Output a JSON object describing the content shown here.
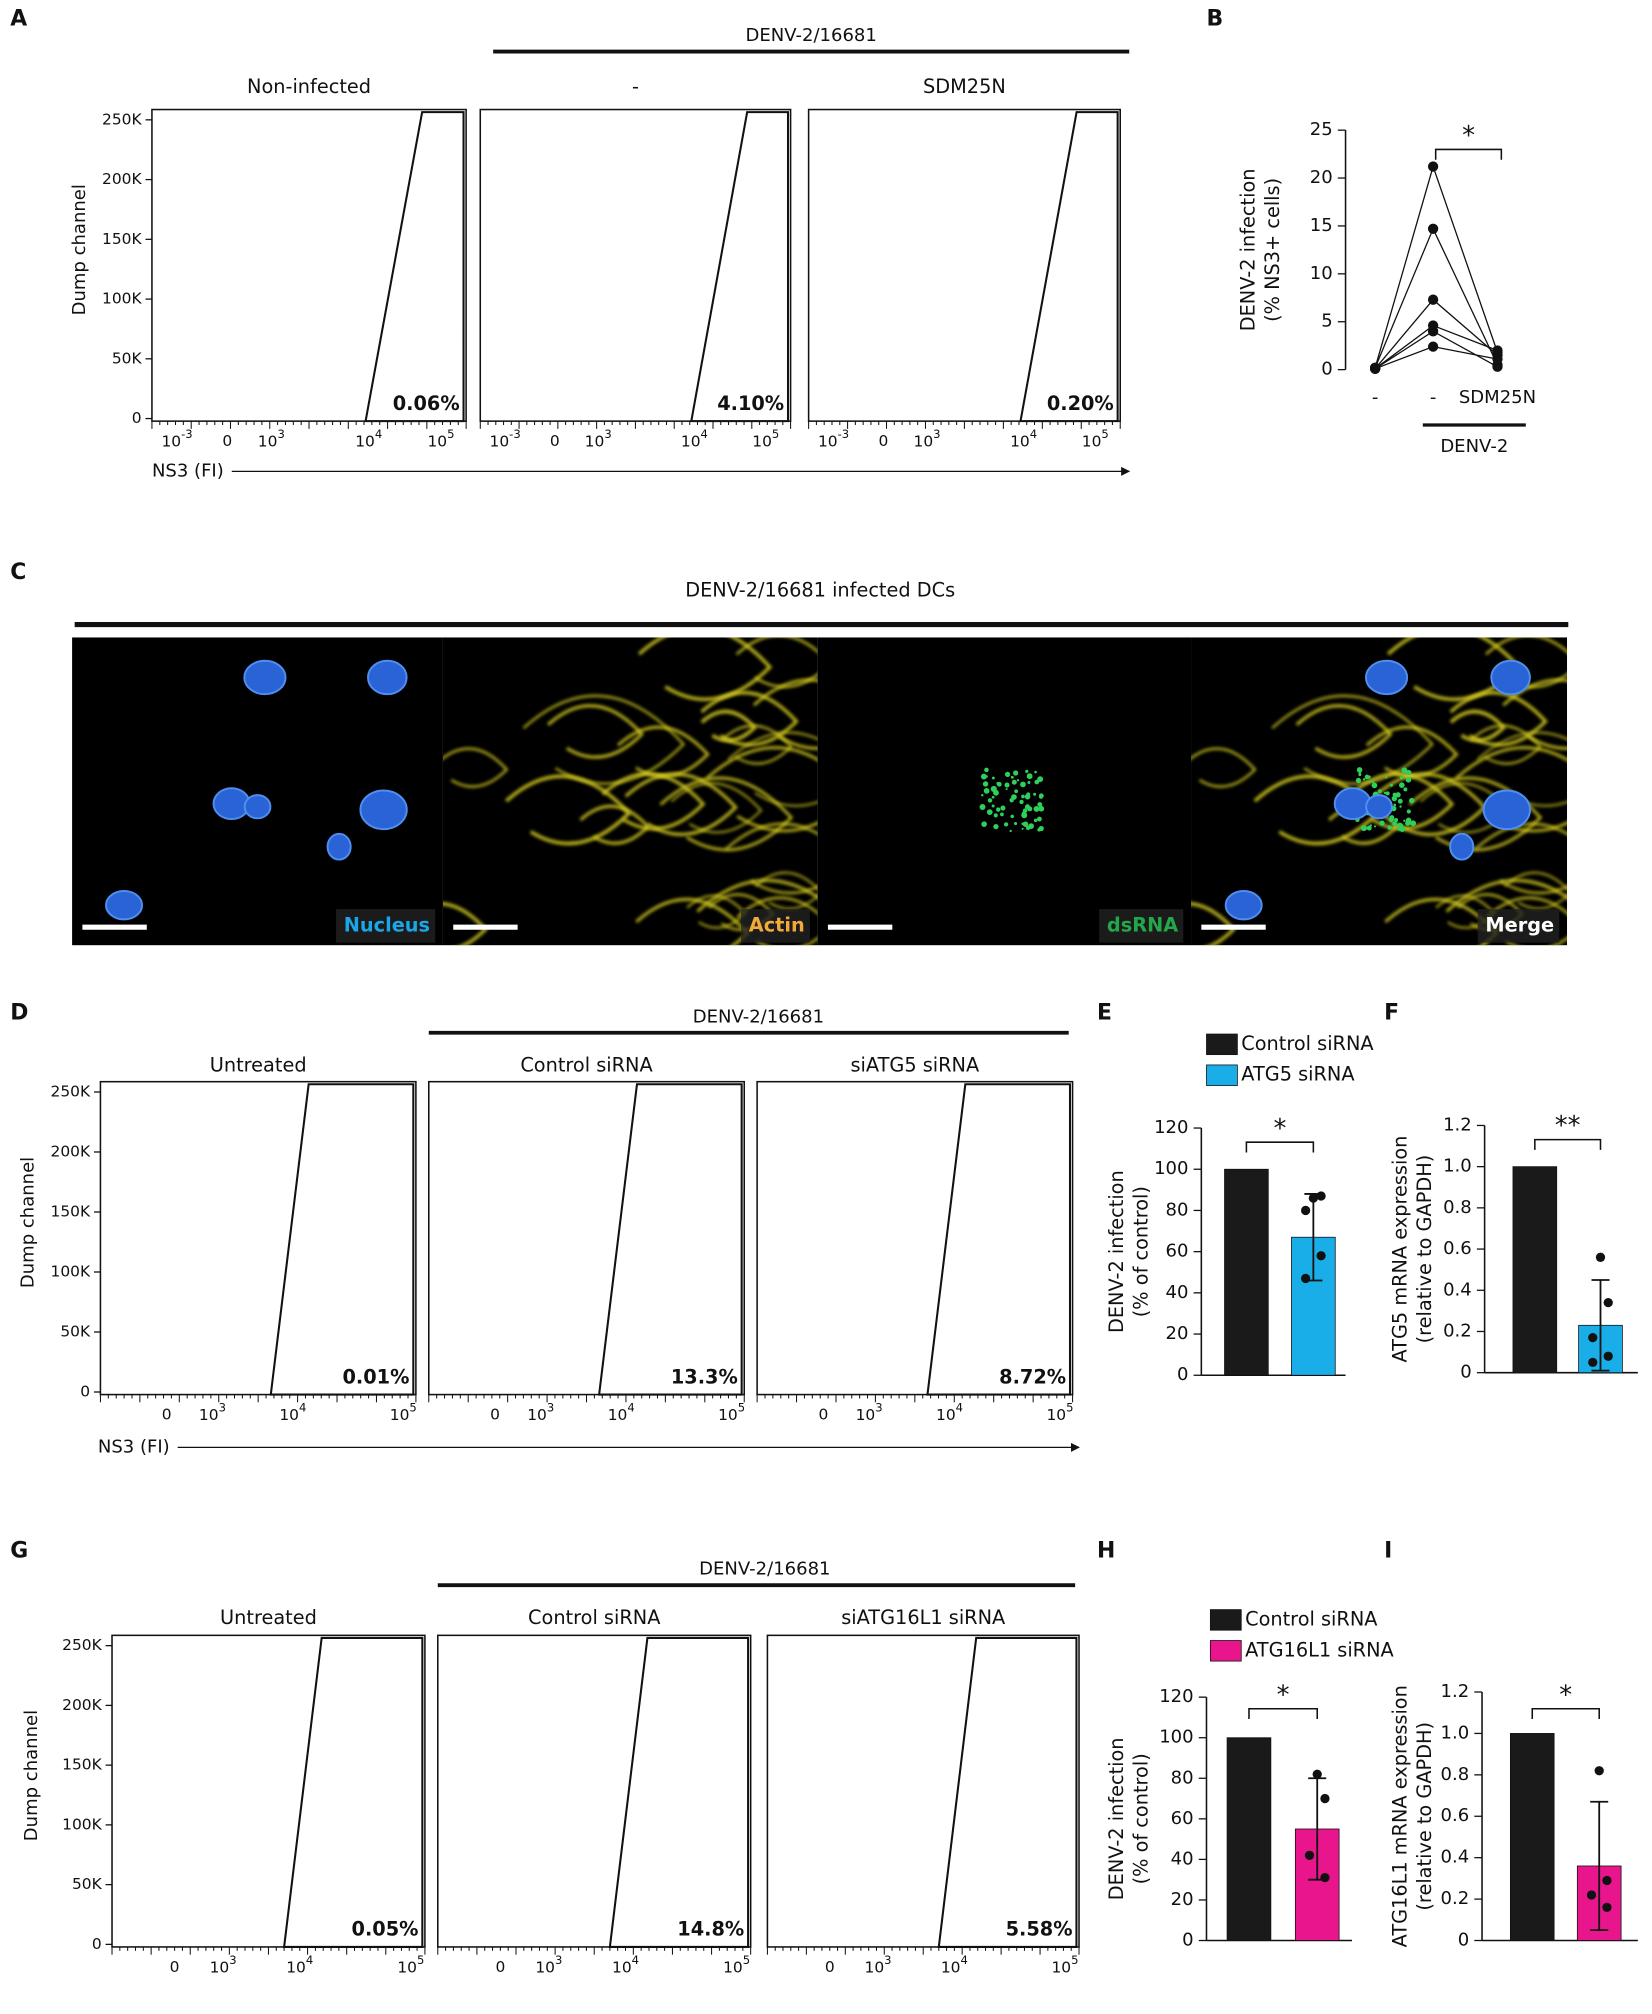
{
  "flow_sections": [
    {
      "panel_label": "A",
      "group_label": "DENV-2/16681",
      "ylabel": "Dump channel",
      "xlabel": "NS3 (FI)",
      "yticks": [
        "250K",
        "200K",
        "150K",
        "100K",
        "50K",
        "0"
      ],
      "xticks": [
        {
          "base": "10",
          "exp": "-3"
        },
        "0",
        {
          "base": "10",
          "exp": "3"
        },
        {
          "base": "10",
          "exp": "4"
        },
        {
          "base": "10",
          "exp": "5"
        }
      ],
      "plots": [
        {
          "title": "Non-infected",
          "percent": "0.06%"
        },
        {
          "title": "-",
          "percent": "4.10%"
        },
        {
          "title": "SDM25N",
          "percent": "0.20%"
        }
      ]
    },
    {
      "panel_label": "D",
      "group_label": "DENV-2/16681",
      "ylabel": "Dump channel",
      "xlabel": "NS3 (FI)",
      "yticks": [
        "250K",
        "200K",
        "150K",
        "100K",
        "50K",
        "0"
      ],
      "xticks": [
        "0",
        {
          "base": "10",
          "exp": "3"
        },
        {
          "base": "10",
          "exp": "4"
        },
        {
          "base": "10",
          "exp": "5"
        }
      ],
      "plots": [
        {
          "title": "Untreated",
          "percent": "0.01%"
        },
        {
          "title": "Control siRNA",
          "percent": "13.3%"
        },
        {
          "title": "siATG5 siRNA",
          "percent": "8.72%"
        }
      ]
    },
    {
      "panel_label": "G",
      "group_label": "DENV-2/16681",
      "ylabel": "Dump channel",
      "xlabel": "NS3 (FI)",
      "yticks": [
        "250K",
        "200K",
        "150K",
        "100K",
        "50K",
        "0"
      ],
      "xticks": [
        "0",
        {
          "base": "10",
          "exp": "3"
        },
        {
          "base": "10",
          "exp": "4"
        },
        {
          "base": "10",
          "exp": "5"
        }
      ],
      "plots": [
        {
          "title": "Untreated",
          "percent": "0.05%"
        },
        {
          "title": "Control siRNA",
          "percent": "14.8%"
        },
        {
          "title": "siATG16L1 siRNA",
          "percent": "5.58%"
        }
      ]
    }
  ],
  "image_panel": {
    "panel_label": "C",
    "title": "DENV-2/16681 infected DCs",
    "channels": [
      "Nucleus",
      "Actin",
      "dsRNA",
      "Merge"
    ]
  },
  "chart_data": [
    {
      "type": "line",
      "panel_label": "B",
      "ylabel": [
        "DENV-2 infection",
        "(% NS3+ cells)"
      ],
      "categories": [
        "-",
        "-",
        "SDM25N"
      ],
      "group_label": "DENV-2",
      "significance": "*",
      "ylim": [
        0,
        25
      ],
      "yticks": [
        0,
        5,
        10,
        15,
        20,
        25
      ],
      "series": [
        {
          "color": "#111111",
          "values": [
            0.2,
            21.2,
            1.8
          ]
        },
        {
          "color": "#111111",
          "values": [
            0.2,
            14.7,
            0.5
          ]
        },
        {
          "color": "#111111",
          "values": [
            0.1,
            7.3,
            1.5
          ]
        },
        {
          "color": "#111111",
          "values": [
            0.1,
            4.6,
            2.0
          ]
        },
        {
          "color": "#111111",
          "values": [
            0.1,
            4.0,
            0.3
          ]
        },
        {
          "color": "#111111",
          "values": [
            0.1,
            2.4,
            1.1
          ]
        }
      ]
    },
    {
      "type": "bar",
      "panel_label": "E",
      "ylabel": [
        "DENV-2 infection",
        "(% of control)"
      ],
      "significance": "*",
      "ylim": [
        0,
        120
      ],
      "yticks": [
        0,
        20,
        40,
        60,
        80,
        100,
        120
      ],
      "series": [
        {
          "name": "Control siRNA",
          "color": "#1a1a1a",
          "values": [
            100
          ]
        },
        {
          "name": "ATG5 siRNA",
          "color": "#1aaee8",
          "values": [
            67
          ],
          "errors": [
            21
          ],
          "points": [
            86,
            87,
            80,
            58,
            47
          ]
        }
      ]
    },
    {
      "type": "bar",
      "panel_label": "F",
      "ylabel": [
        "ATG5 mRNA expression",
        "(relative to GAPDH)"
      ],
      "significance": "**",
      "ylim": [
        0,
        1.2
      ],
      "yticks": [
        0,
        0.2,
        0.4,
        0.6,
        0.8,
        {
          "value": 1,
          "label": "1.0"
        },
        1.2
      ],
      "series": [
        {
          "color": "#1a1a1a",
          "values": [
            1
          ]
        },
        {
          "color": "#1aaee8",
          "values": [
            0.23
          ],
          "errors": [
            0.22
          ],
          "points": [
            0.56,
            0.34,
            0.17,
            0.08,
            0.05
          ]
        }
      ]
    },
    {
      "type": "bar",
      "panel_label": "H",
      "ylabel": [
        "DENV-2 infection",
        "(% of control)"
      ],
      "significance": "*",
      "ylim": [
        0,
        120
      ],
      "yticks": [
        0,
        20,
        40,
        60,
        80,
        100,
        120
      ],
      "series": [
        {
          "name": "Control siRNA",
          "color": "#1a1a1a",
          "values": [
            100
          ]
        },
        {
          "name": "ATG16L1 siRNA",
          "color": "#e8158c",
          "values": [
            55
          ],
          "errors": [
            25
          ],
          "points": [
            82,
            70,
            42,
            31
          ]
        }
      ]
    },
    {
      "type": "bar",
      "panel_label": "I",
      "ylabel": [
        "ATG16L1 mRNA expression",
        "(relative to GAPDH)"
      ],
      "significance": "*",
      "ylim": [
        0,
        1.2
      ],
      "yticks": [
        0,
        0.2,
        0.4,
        0.6,
        0.8,
        {
          "value": 1,
          "label": "1.0"
        },
        1.2
      ],
      "series": [
        {
          "color": "#1a1a1a",
          "values": [
            1
          ]
        },
        {
          "color": "#e8158c",
          "values": [
            0.36
          ],
          "errors": [
            0.31
          ],
          "points": [
            0.82,
            0.29,
            0.22,
            0.16
          ]
        }
      ]
    }
  ]
}
